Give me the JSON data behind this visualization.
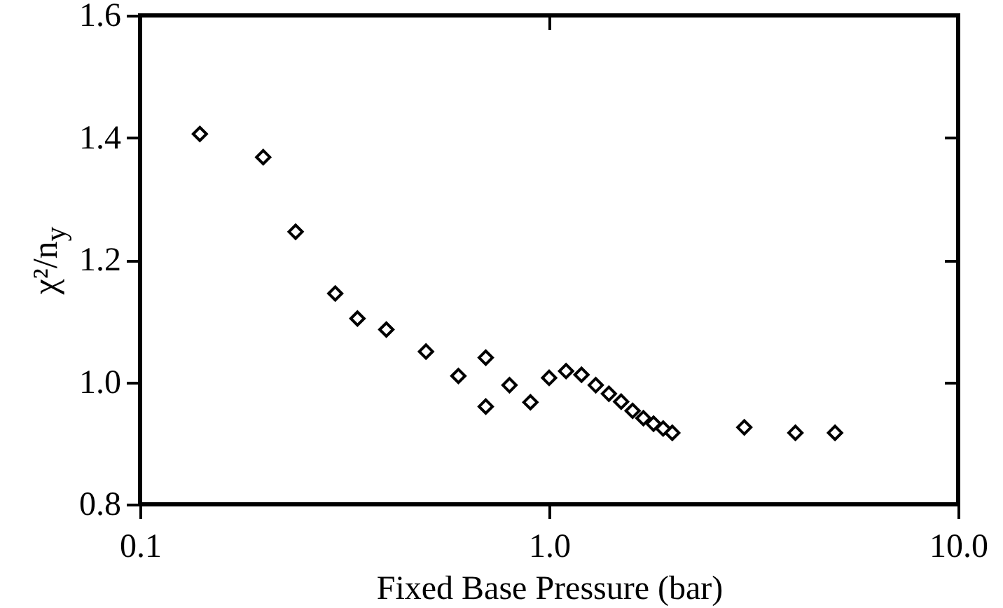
{
  "chart_data": {
    "type": "scatter",
    "xlabel": "Fixed Base Pressure (bar)",
    "ylabel": "χ²/n$_{y}$",
    "log": "x",
    "marker": "diamond",
    "grid": false,
    "xlim": [
      0.1,
      10
    ],
    "xticks": [
      0.1,
      {
        "value": 1,
        "label": "1.0"
      },
      {
        "value": 10,
        "label": "10.0"
      }
    ],
    "ylim": [
      0.8,
      1.6
    ],
    "yticks": [
      0.8,
      {
        "value": 1,
        "label": "1.0"
      },
      1.2,
      1.4,
      1.6
    ],
    "series": [
      {
        "color": "#000000",
        "x": [
          0.14,
          0.2,
          0.24,
          0.3,
          0.34,
          0.4,
          0.5,
          0.6,
          0.7,
          0.7,
          0.8,
          0.9,
          1.0,
          1.1,
          1.2,
          1.3,
          1.4,
          1.5,
          1.6,
          1.7,
          1.8,
          1.9,
          2.0,
          3.0,
          4.0,
          5.0
        ],
        "values": [
          1.406,
          1.368,
          1.246,
          1.145,
          1.104,
          1.086,
          1.05,
          1.01,
          1.04,
          0.96,
          0.995,
          0.967,
          1.007,
          1.018,
          1.012,
          0.995,
          0.981,
          0.968,
          0.953,
          0.941,
          0.932,
          0.924,
          0.917,
          0.926,
          0.917,
          0.917
        ]
      }
    ]
  }
}
